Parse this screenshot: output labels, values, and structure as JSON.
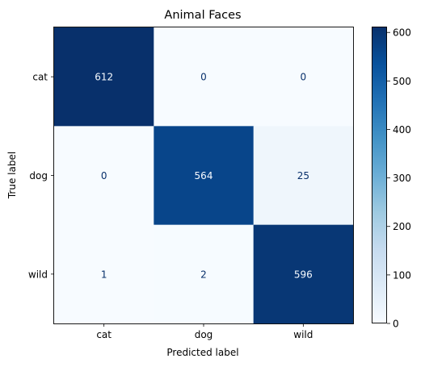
{
  "chart_data": {
    "type": "heatmap",
    "title": "Animal Faces",
    "xlabel": "Predicted label",
    "ylabel": "True label",
    "x_categories": [
      "cat",
      "dog",
      "wild"
    ],
    "y_categories": [
      "cat",
      "dog",
      "wild"
    ],
    "matrix": [
      [
        612,
        0,
        0
      ],
      [
        0,
        564,
        25
      ],
      [
        1,
        2,
        596
      ]
    ],
    "colormap": "Blues",
    "colorbar": {
      "vmin": 0,
      "vmax": 612,
      "ticks": [
        0,
        100,
        200,
        300,
        400,
        500,
        600
      ]
    },
    "grid": false,
    "legend": "colorbar right"
  }
}
